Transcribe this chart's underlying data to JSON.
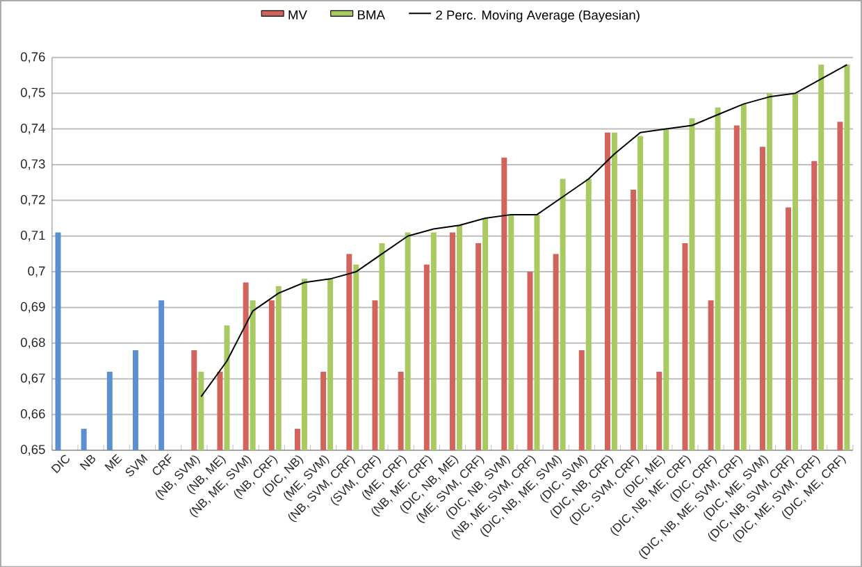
{
  "chart_data": {
    "type": "bar",
    "categories": [
      "DIC",
      "NB",
      "ME",
      "SVM",
      "CRF",
      "(NB, SVM)",
      "(NB, ME)",
      "(NB, ME, SVM)",
      "(NB, CRF)",
      "(DIC, NB)",
      "(ME, SVM)",
      "(NB, SVM, CRF)",
      "(SVM, CRF)",
      "(ME, CRF)",
      "(NB, ME, CRF)",
      "(DIC, NB, ME)",
      "(ME, SVM, CRF)",
      "(DIC, NB, SVM)",
      "(NB, ME, SVM, CRF)",
      "(DIC, NB, ME, SVM)",
      "(DIC, SVM)",
      "(DIC, NB, CRF)",
      "(DIC, SVM, CRF)",
      "(DIC, ME)",
      "(DIC, NB, ME, CRF)",
      "(DIC, CRF)",
      "(DIC, NB, ME, SVM, CRF)",
      "(DIC, ME, SVM)",
      "(DIC, NB, SVM, CRF)",
      "(DIC, ME, SVM, CRF)",
      "(DIC, ME, CRF)"
    ],
    "series": [
      {
        "color": "#5b8fcf",
        "values": [
          0.711,
          0.656,
          0.672,
          0.678,
          0.692,
          null,
          null,
          null,
          null,
          null,
          null,
          null,
          null,
          null,
          null,
          null,
          null,
          null,
          null,
          null,
          null,
          null,
          null,
          null,
          null,
          null,
          null,
          null,
          null,
          null,
          null
        ]
      },
      {
        "name": "MV",
        "color": "#d2645e",
        "values": [
          null,
          null,
          null,
          null,
          null,
          0.678,
          0.672,
          0.697,
          0.692,
          0.656,
          0.672,
          0.705,
          0.692,
          0.672,
          0.702,
          0.711,
          0.708,
          0.732,
          0.7,
          0.705,
          0.678,
          0.739,
          0.723,
          0.672,
          0.708,
          0.692,
          0.741,
          0.735,
          0.718,
          0.731,
          0.742
        ]
      },
      {
        "name": "BMA",
        "color": "#a9c961",
        "values": [
          null,
          null,
          null,
          null,
          null,
          0.672,
          0.685,
          0.692,
          0.696,
          0.698,
          0.698,
          0.702,
          0.708,
          0.711,
          0.711,
          0.713,
          0.715,
          0.716,
          0.716,
          0.726,
          0.726,
          0.739,
          0.738,
          0.74,
          0.743,
          0.746,
          0.747,
          0.75,
          0.75,
          0.758,
          0.758
        ]
      },
      {
        "name": "2 Perc. Moving Average (Bayesian)",
        "type": "line",
        "color": "#000000",
        "values": [
          null,
          null,
          null,
          null,
          null,
          0.665,
          0.675,
          0.689,
          0.694,
          0.697,
          0.698,
          0.7,
          0.705,
          0.71,
          0.712,
          0.713,
          0.715,
          0.716,
          0.716,
          0.721,
          0.726,
          0.733,
          0.739,
          0.74,
          0.741,
          0.744,
          0.747,
          0.749,
          0.75,
          0.754,
          0.758
        ]
      }
    ],
    "ylim": [
      0.65,
      0.76
    ],
    "yticks": [
      {
        "value": 0.65,
        "label": "0,65"
      },
      {
        "value": 0.66,
        "label": "0,66"
      },
      {
        "value": 0.67,
        "label": "0,67"
      },
      {
        "value": 0.68,
        "label": "0,68"
      },
      {
        "value": 0.69,
        "label": "0,69"
      },
      {
        "value": 0.7,
        "label": "0,7"
      },
      {
        "value": 0.71,
        "label": "0,71"
      },
      {
        "value": 0.72,
        "label": "0,72"
      },
      {
        "value": 0.73,
        "label": "0,73"
      },
      {
        "value": 0.74,
        "label": "0,74"
      },
      {
        "value": 0.75,
        "label": "0,75"
      },
      {
        "value": 0.76,
        "label": "0,76"
      }
    ],
    "grid": "y",
    "legend": "top"
  }
}
